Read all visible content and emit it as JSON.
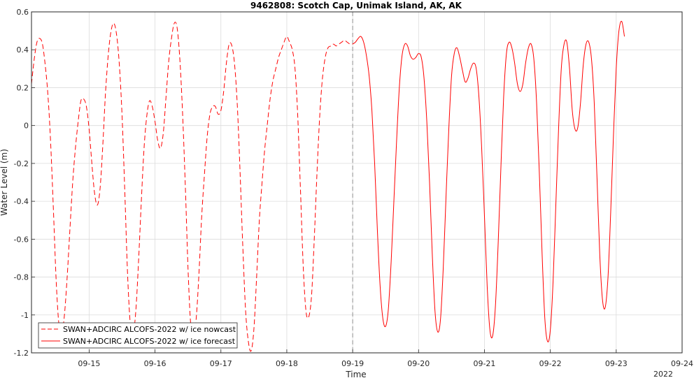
{
  "chart_data": {
    "type": "line",
    "title": "9462808: Scotch Cap, Unimak Island, AK, AK",
    "xlabel": "Time",
    "ylabel": "Water Level (m)",
    "x_year_label": "2022",
    "xlim": [
      "2022-09-14 03:00",
      "2022-09-24 00:00"
    ],
    "ylim": [
      -1.2,
      0.6
    ],
    "x_ticks": [
      "09-15",
      "09-16",
      "09-17",
      "09-18",
      "09-19",
      "09-20",
      "09-21",
      "09-22",
      "09-23",
      "09-24"
    ],
    "y_ticks": [
      "-1.2",
      "-1",
      "-0.8",
      "-0.6",
      "-0.4",
      "-0.2",
      "0",
      "0.2",
      "0.4",
      "0.6"
    ],
    "grid": true,
    "legend_position": "bottom-left",
    "nowcast_cutoff": "2022-09-19 00:00",
    "line_color": "#ff0000",
    "series": [
      {
        "name": "SWAN+ADCIRC ALCOFS-2022 w/ ice nowcast",
        "style": "dashed",
        "points": [
          [
            "2022-09-14 03:00",
            0.22
          ],
          [
            "2022-09-14 04:00",
            0.35
          ],
          [
            "2022-09-14 05:00",
            0.44
          ],
          [
            "2022-09-14 06:00",
            0.46
          ],
          [
            "2022-09-14 07:00",
            0.43
          ],
          [
            "2022-09-14 08:00",
            0.32
          ],
          [
            "2022-09-14 09:00",
            0.16
          ],
          [
            "2022-09-14 10:00",
            -0.1
          ],
          [
            "2022-09-14 11:00",
            -0.45
          ],
          [
            "2022-09-14 12:00",
            -0.82
          ],
          [
            "2022-09-14 13:00",
            -1.05
          ],
          [
            "2022-09-14 14:00",
            -1.1
          ],
          [
            "2022-09-14 15:00",
            -1.0
          ],
          [
            "2022-09-14 16:00",
            -0.8
          ],
          [
            "2022-09-14 17:00",
            -0.55
          ],
          [
            "2022-09-14 18:00",
            -0.3
          ],
          [
            "2022-09-14 19:00",
            -0.12
          ],
          [
            "2022-09-14 20:00",
            0.02
          ],
          [
            "2022-09-14 21:00",
            0.13
          ],
          [
            "2022-09-14 22:00",
            0.14
          ],
          [
            "2022-09-14 23:00",
            0.1
          ],
          [
            "2022-09-15 00:00",
            -0.02
          ],
          [
            "2022-09-15 01:00",
            -0.2
          ],
          [
            "2022-09-15 02:00",
            -0.36
          ],
          [
            "2022-09-15 03:00",
            -0.42
          ],
          [
            "2022-09-15 04:00",
            -0.33
          ],
          [
            "2022-09-15 05:00",
            -0.1
          ],
          [
            "2022-09-15 06:00",
            0.18
          ],
          [
            "2022-09-15 07:00",
            0.38
          ],
          [
            "2022-09-15 08:00",
            0.5
          ],
          [
            "2022-09-15 09:00",
            0.54
          ],
          [
            "2022-09-15 10:00",
            0.48
          ],
          [
            "2022-09-15 11:00",
            0.32
          ],
          [
            "2022-09-15 12:00",
            0.05
          ],
          [
            "2022-09-15 13:00",
            -0.35
          ],
          [
            "2022-09-15 14:00",
            -0.78
          ],
          [
            "2022-09-15 15:00",
            -1.05
          ],
          [
            "2022-09-15 16:00",
            -1.1
          ],
          [
            "2022-09-15 17:00",
            -0.98
          ],
          [
            "2022-09-15 18:00",
            -0.72
          ],
          [
            "2022-09-15 19:00",
            -0.4
          ],
          [
            "2022-09-15 20:00",
            -0.12
          ],
          [
            "2022-09-15 21:00",
            0.05
          ],
          [
            "2022-09-15 22:00",
            0.13
          ],
          [
            "2022-09-15 23:00",
            0.1
          ],
          [
            "2022-09-16 00:00",
            0.02
          ],
          [
            "2022-09-16 01:00",
            -0.08
          ],
          [
            "2022-09-16 02:00",
            -0.12
          ],
          [
            "2022-09-16 03:00",
            -0.04
          ],
          [
            "2022-09-16 04:00",
            0.15
          ],
          [
            "2022-09-16 05:00",
            0.34
          ],
          [
            "2022-09-16 06:00",
            0.46
          ],
          [
            "2022-09-16 07:00",
            0.54
          ],
          [
            "2022-09-16 08:00",
            0.52
          ],
          [
            "2022-09-16 09:00",
            0.36
          ],
          [
            "2022-09-16 10:00",
            0.08
          ],
          [
            "2022-09-16 11:00",
            -0.3
          ],
          [
            "2022-09-16 12:00",
            -0.75
          ],
          [
            "2022-09-16 13:00",
            -1.05
          ],
          [
            "2022-09-16 14:00",
            -1.12
          ],
          [
            "2022-09-16 15:00",
            -1.02
          ],
          [
            "2022-09-16 16:00",
            -0.78
          ],
          [
            "2022-09-16 17:00",
            -0.48
          ],
          [
            "2022-09-16 18:00",
            -0.26
          ],
          [
            "2022-09-16 19:00",
            -0.06
          ],
          [
            "2022-09-16 20:00",
            0.06
          ],
          [
            "2022-09-16 21:00",
            0.1
          ],
          [
            "2022-09-16 22:00",
            0.1
          ],
          [
            "2022-09-16 23:00",
            0.06
          ],
          [
            "2022-09-17 00:00",
            0.08
          ],
          [
            "2022-09-17 01:00",
            0.18
          ],
          [
            "2022-09-17 02:00",
            0.33
          ],
          [
            "2022-09-17 03:00",
            0.43
          ],
          [
            "2022-09-17 04:00",
            0.42
          ],
          [
            "2022-09-17 05:00",
            0.32
          ],
          [
            "2022-09-17 06:00",
            0.1
          ],
          [
            "2022-09-17 07:00",
            -0.25
          ],
          [
            "2022-09-17 08:00",
            -0.65
          ],
          [
            "2022-09-17 09:00",
            -0.98
          ],
          [
            "2022-09-17 10:00",
            -1.14
          ],
          [
            "2022-09-17 11:00",
            -1.19
          ],
          [
            "2022-09-17 12:00",
            -1.08
          ],
          [
            "2022-09-17 13:00",
            -0.8
          ],
          [
            "2022-09-17 14:00",
            -0.5
          ],
          [
            "2022-09-17 15:00",
            -0.3
          ],
          [
            "2022-09-17 16:00",
            -0.12
          ],
          [
            "2022-09-17 17:00",
            0.02
          ],
          [
            "2022-09-17 18:00",
            0.15
          ],
          [
            "2022-09-17 19:00",
            0.24
          ],
          [
            "2022-09-17 20:00",
            0.3
          ],
          [
            "2022-09-17 21:00",
            0.36
          ],
          [
            "2022-09-17 22:00",
            0.4
          ],
          [
            "2022-09-17 23:00",
            0.44
          ],
          [
            "2022-09-18 00:00",
            0.47
          ],
          [
            "2022-09-18 01:00",
            0.44
          ],
          [
            "2022-09-18 02:00",
            0.4
          ],
          [
            "2022-09-18 03:00",
            0.3
          ],
          [
            "2022-09-18 04:00",
            0.05
          ],
          [
            "2022-09-18 05:00",
            -0.35
          ],
          [
            "2022-09-18 06:00",
            -0.75
          ],
          [
            "2022-09-18 07:00",
            -0.98
          ],
          [
            "2022-09-18 08:00",
            -1.01
          ],
          [
            "2022-09-18 09:00",
            -0.9
          ],
          [
            "2022-09-18 10:00",
            -0.6
          ],
          [
            "2022-09-18 11:00",
            -0.25
          ],
          [
            "2022-09-18 12:00",
            0.05
          ],
          [
            "2022-09-18 13:00",
            0.25
          ],
          [
            "2022-09-18 14:00",
            0.36
          ],
          [
            "2022-09-18 15:00",
            0.41
          ],
          [
            "2022-09-18 16:00",
            0.42
          ],
          [
            "2022-09-18 17:00",
            0.43
          ],
          [
            "2022-09-18 18:00",
            0.42
          ],
          [
            "2022-09-18 19:00",
            0.43
          ],
          [
            "2022-09-18 20:00",
            0.44
          ],
          [
            "2022-09-18 21:00",
            0.45
          ],
          [
            "2022-09-18 22:00",
            0.44
          ],
          [
            "2022-09-18 23:00",
            0.43
          ],
          [
            "2022-09-19 00:00",
            0.43
          ]
        ]
      },
      {
        "name": "SWAN+ADCIRC ALCOFS-2022 w/ ice forecast",
        "style": "solid",
        "points": [
          [
            "2022-09-19 00:00",
            0.43
          ],
          [
            "2022-09-19 01:00",
            0.44
          ],
          [
            "2022-09-19 02:00",
            0.46
          ],
          [
            "2022-09-19 03:00",
            0.47
          ],
          [
            "2022-09-19 04:00",
            0.44
          ],
          [
            "2022-09-19 05:00",
            0.37
          ],
          [
            "2022-09-19 06:00",
            0.26
          ],
          [
            "2022-09-19 07:00",
            0.08
          ],
          [
            "2022-09-19 08:00",
            -0.2
          ],
          [
            "2022-09-19 09:00",
            -0.55
          ],
          [
            "2022-09-19 10:00",
            -0.85
          ],
          [
            "2022-09-19 11:00",
            -1.02
          ],
          [
            "2022-09-19 12:00",
            -1.06
          ],
          [
            "2022-09-19 13:00",
            -0.97
          ],
          [
            "2022-09-19 14:00",
            -0.72
          ],
          [
            "2022-09-19 15:00",
            -0.4
          ],
          [
            "2022-09-19 16:00",
            -0.08
          ],
          [
            "2022-09-19 17:00",
            0.2
          ],
          [
            "2022-09-19 18:00",
            0.37
          ],
          [
            "2022-09-19 19:00",
            0.43
          ],
          [
            "2022-09-19 20:00",
            0.42
          ],
          [
            "2022-09-19 21:00",
            0.37
          ],
          [
            "2022-09-19 22:00",
            0.35
          ],
          [
            "2022-09-19 23:00",
            0.36
          ],
          [
            "2022-09-20 00:00",
            0.38
          ],
          [
            "2022-09-20 01:00",
            0.36
          ],
          [
            "2022-09-20 02:00",
            0.25
          ],
          [
            "2022-09-20 03:00",
            0.02
          ],
          [
            "2022-09-20 04:00",
            -0.3
          ],
          [
            "2022-09-20 05:00",
            -0.68
          ],
          [
            "2022-09-20 06:00",
            -0.98
          ],
          [
            "2022-09-20 07:00",
            -1.09
          ],
          [
            "2022-09-20 08:00",
            -1.02
          ],
          [
            "2022-09-20 09:00",
            -0.75
          ],
          [
            "2022-09-20 10:00",
            -0.38
          ],
          [
            "2022-09-20 11:00",
            -0.02
          ],
          [
            "2022-09-20 12:00",
            0.26
          ],
          [
            "2022-09-20 13:00",
            0.38
          ],
          [
            "2022-09-20 14:00",
            0.41
          ],
          [
            "2022-09-20 15:00",
            0.36
          ],
          [
            "2022-09-20 16:00",
            0.29
          ],
          [
            "2022-09-20 17:00",
            0.23
          ],
          [
            "2022-09-20 18:00",
            0.25
          ],
          [
            "2022-09-20 19:00",
            0.3
          ],
          [
            "2022-09-20 20:00",
            0.33
          ],
          [
            "2022-09-20 21:00",
            0.3
          ],
          [
            "2022-09-20 22:00",
            0.15
          ],
          [
            "2022-09-20 23:00",
            -0.12
          ],
          [
            "2022-09-21 00:00",
            -0.48
          ],
          [
            "2022-09-21 01:00",
            -0.85
          ],
          [
            "2022-09-21 02:00",
            -1.08
          ],
          [
            "2022-09-21 03:00",
            -1.11
          ],
          [
            "2022-09-21 04:00",
            -0.95
          ],
          [
            "2022-09-21 05:00",
            -0.62
          ],
          [
            "2022-09-21 06:00",
            -0.22
          ],
          [
            "2022-09-21 07:00",
            0.15
          ],
          [
            "2022-09-21 08:00",
            0.38
          ],
          [
            "2022-09-21 09:00",
            0.44
          ],
          [
            "2022-09-21 10:00",
            0.41
          ],
          [
            "2022-09-21 11:00",
            0.33
          ],
          [
            "2022-09-21 12:00",
            0.22
          ],
          [
            "2022-09-21 13:00",
            0.18
          ],
          [
            "2022-09-21 14:00",
            0.22
          ],
          [
            "2022-09-21 15:00",
            0.33
          ],
          [
            "2022-09-21 16:00",
            0.41
          ],
          [
            "2022-09-21 17:00",
            0.43
          ],
          [
            "2022-09-21 18:00",
            0.35
          ],
          [
            "2022-09-21 19:00",
            0.12
          ],
          [
            "2022-09-21 20:00",
            -0.25
          ],
          [
            "2022-09-21 21:00",
            -0.68
          ],
          [
            "2022-09-21 22:00",
            -1.02
          ],
          [
            "2022-09-21 23:00",
            -1.14
          ],
          [
            "2022-09-22 00:00",
            -1.08
          ],
          [
            "2022-09-22 01:00",
            -0.82
          ],
          [
            "2022-09-22 02:00",
            -0.42
          ],
          [
            "2022-09-22 03:00",
            -0.02
          ],
          [
            "2022-09-22 04:00",
            0.3
          ],
          [
            "2022-09-22 05:00",
            0.43
          ],
          [
            "2022-09-22 06:00",
            0.44
          ],
          [
            "2022-09-22 07:00",
            0.3
          ],
          [
            "2022-09-22 08:00",
            0.08
          ],
          [
            "2022-09-22 09:00",
            -0.02
          ],
          [
            "2022-09-22 10:00",
            -0.01
          ],
          [
            "2022-09-22 11:00",
            0.12
          ],
          [
            "2022-09-22 12:00",
            0.32
          ],
          [
            "2022-09-22 13:00",
            0.43
          ],
          [
            "2022-09-22 14:00",
            0.44
          ],
          [
            "2022-09-22 15:00",
            0.35
          ],
          [
            "2022-09-22 16:00",
            0.12
          ],
          [
            "2022-09-22 17:00",
            -0.28
          ],
          [
            "2022-09-22 18:00",
            -0.68
          ],
          [
            "2022-09-22 19:00",
            -0.92
          ],
          [
            "2022-09-22 20:00",
            -0.96
          ],
          [
            "2022-09-22 21:00",
            -0.8
          ],
          [
            "2022-09-22 22:00",
            -0.45
          ],
          [
            "2022-09-22 23:00",
            -0.05
          ],
          [
            "2022-09-23 00:00",
            0.3
          ],
          [
            "2022-09-23 01:00",
            0.5
          ],
          [
            "2022-09-23 02:00",
            0.55
          ],
          [
            "2022-09-23 03:00",
            0.47
          ]
        ]
      }
    ]
  }
}
